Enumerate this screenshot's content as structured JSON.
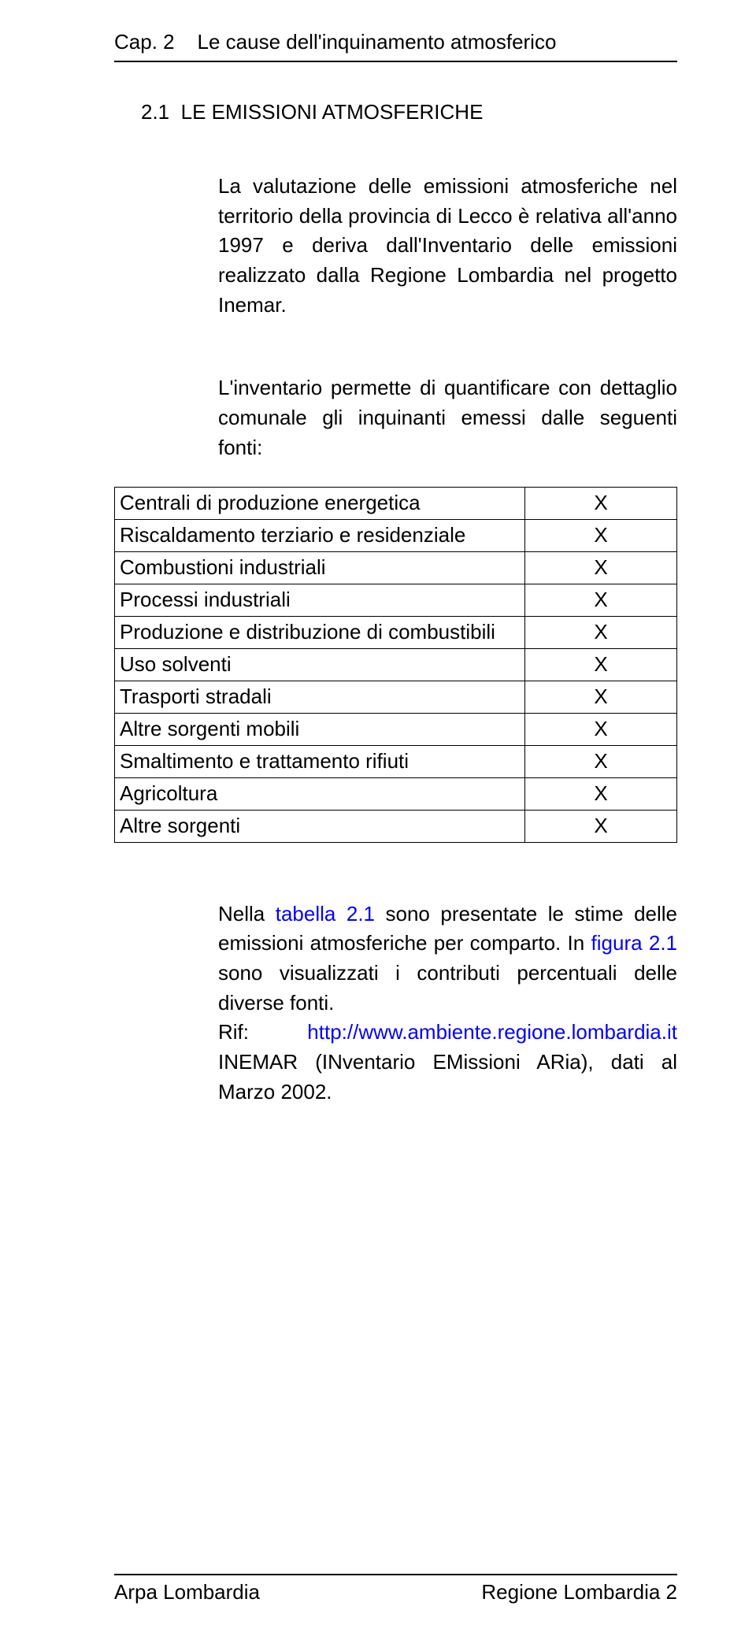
{
  "chapter": {
    "label": "Cap. 2",
    "title": "Le cause dell'inquinamento atmosferico"
  },
  "section": {
    "number": "2.1",
    "title": "LE EMISSIONI ATMOSFERICHE"
  },
  "paragraph1": "La valutazione delle emissioni atmosferiche nel territorio della provincia di Lecco è relativa all'anno 1997 e deriva dall'Inventario delle emissioni realizzato dalla Regione Lombardia nel progetto Inemar.",
  "paragraph2": "L'inventario permette di quantificare con dettaglio comunale gli inquinanti emessi dalle seguenti fonti:",
  "table": {
    "rows": [
      {
        "label": "Centrali di produzione energetica",
        "mark": "X"
      },
      {
        "label": "Riscaldamento terziario e residenziale",
        "mark": "X"
      },
      {
        "label": "Combustioni industriali",
        "mark": "X"
      },
      {
        "label": "Processi industriali",
        "mark": "X"
      },
      {
        "label": "Produzione e distribuzione di  combustibili",
        "mark": "X"
      },
      {
        "label": "Uso solventi",
        "mark": "X"
      },
      {
        "label": "Trasporti stradali",
        "mark": "X"
      },
      {
        "label": "Altre sorgenti mobili",
        "mark": "X"
      },
      {
        "label": "Smaltimento e trattamento rifiuti",
        "mark": "X"
      },
      {
        "label": "Agricoltura",
        "mark": "X"
      },
      {
        "label": "Altre sorgenti",
        "mark": "X"
      }
    ]
  },
  "paragraph3": {
    "pre1": "Nella ",
    "link1": "tabella 2.1",
    "mid1": " sono presentate le stime delle emissioni atmosferiche per comparto. In ",
    "link2": "figura 2.1",
    "mid2": " sono visualizzati i contributi percentuali delle diverse fonti.",
    "line2pre": "Rif: ",
    "link3": "http://www.ambiente.regione.lombardia.it",
    "line2post": " INEMAR (INventario EMissioni ARia), dati al Marzo 2002."
  },
  "footer": {
    "left": "Arpa Lombardia",
    "right": "Regione Lombardia  2"
  },
  "colors": {
    "text": "#000000",
    "link": "#0000ff",
    "background": "#ffffff",
    "rule": "#000000"
  },
  "typography": {
    "body_fontsize_pt": 20,
    "font_family": "Arial"
  }
}
